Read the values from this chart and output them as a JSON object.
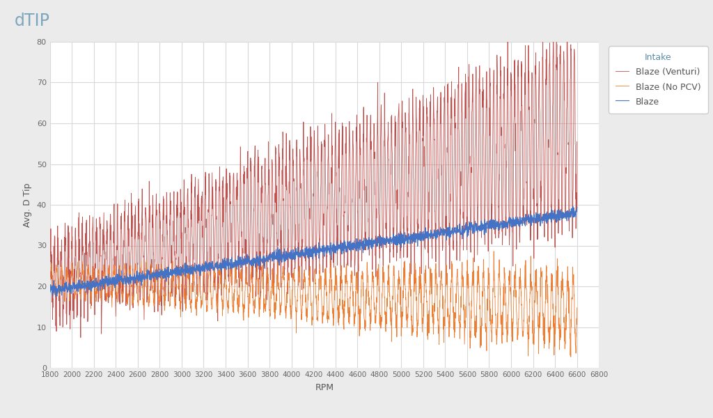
{
  "title_top_left": "dTIP",
  "ylabel": "Avg. D Tip",
  "xlabel": "RPM",
  "legend_title": "Intake",
  "series": [
    {
      "label": "Blaze",
      "color": "#4472C4"
    },
    {
      "label": "Blaze (No PCV)",
      "color": "#ED7D31"
    },
    {
      "label": "Blaze (Venturi)",
      "color": "#C0504D"
    }
  ],
  "xlim": [
    1800,
    6800
  ],
  "ylim": [
    0,
    80
  ],
  "xticks": [
    1800,
    2000,
    2200,
    2400,
    2600,
    2800,
    3000,
    3200,
    3400,
    3600,
    3800,
    4000,
    4200,
    4400,
    4600,
    4800,
    5000,
    5200,
    5400,
    5600,
    5800,
    6000,
    6200,
    6400,
    6600,
    6800
  ],
  "yticks": [
    0,
    10,
    20,
    30,
    40,
    50,
    60,
    70,
    80
  ],
  "background_color": "#EBEBEB",
  "plot_bg": "#FFFFFF",
  "grid_color": "#D8D8D8",
  "legend_bg": "#FFFFFF",
  "legend_edge": "#CCCCCC"
}
